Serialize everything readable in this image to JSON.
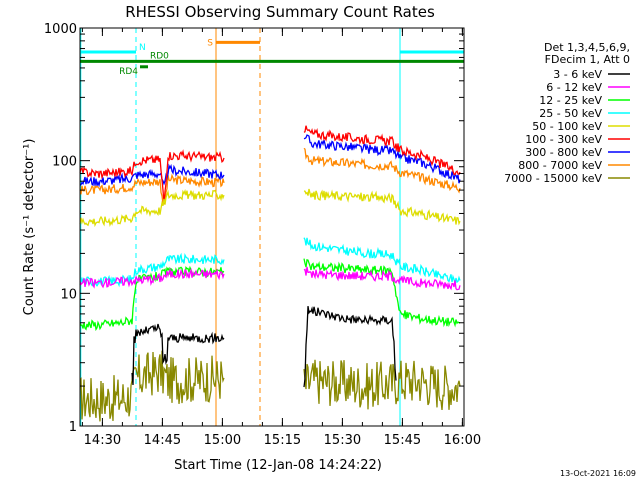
{
  "chart_data": {
    "type": "line",
    "title": "RHESSI Observing Summary Count Rates",
    "xlabel": "Start Time (12-Jan-08 14:24:22)",
    "ylabel": "Count Rate (s⁻¹ detector⁻¹)",
    "yscale": "log",
    "ylim": [
      1,
      1000
    ],
    "xlim_minutes": [
      0,
      96
    ],
    "x_ticks": [
      {
        "label": "14:30",
        "min": 5.6
      },
      {
        "label": "14:45",
        "min": 20.6
      },
      {
        "label": "15:00",
        "min": 35.6
      },
      {
        "label": "15:15",
        "min": 50.6
      },
      {
        "label": "15:30",
        "min": 65.6
      },
      {
        "label": "15:45",
        "min": 80.6
      },
      {
        "label": "16:00",
        "min": 95.6
      }
    ],
    "y_ticks": [
      {
        "label": "1",
        "value": 1
      },
      {
        "label": "10",
        "value": 10
      },
      {
        "label": "100",
        "value": 100
      },
      {
        "label": "1000",
        "value": 1000
      }
    ],
    "legend": {
      "position": "right",
      "header": [
        "Det 1,3,4,5,6,9,",
        "FDecim 1, Att 0"
      ]
    },
    "series": [
      {
        "name": "3 - 6 keV",
        "color": "#000000",
        "segments": [
          [
            [
              13,
              2.1
            ],
            [
              14,
              5
            ],
            [
              20,
              5.5
            ],
            [
              21,
              2.5
            ],
            [
              22,
              4.6
            ],
            [
              36,
              4.6
            ]
          ],
          [
            [
              56,
              2.2
            ],
            [
              57,
              7.5
            ],
            [
              66,
              6.5
            ],
            [
              72,
              6.2
            ],
            [
              78,
              6.3
            ],
            [
              79,
              2.2
            ]
          ]
        ]
      },
      {
        "name": "6 - 12 keV",
        "color": "#ff00ff",
        "segments": [
          [
            [
              0,
              12
            ],
            [
              5,
              12
            ],
            [
              10,
              12.3
            ],
            [
              13,
              12.5
            ],
            [
              20,
              13
            ],
            [
              22,
              14
            ],
            [
              36,
              14
            ]
          ],
          [
            [
              56,
              15
            ],
            [
              58,
              14
            ],
            [
              66,
              13.7
            ],
            [
              72,
              13.5
            ],
            [
              78,
              13.5
            ],
            [
              80,
              12.5
            ],
            [
              85,
              12
            ],
            [
              90,
              11.8
            ],
            [
              95,
              11.5
            ]
          ]
        ]
      },
      {
        "name": "12 - 25 keV",
        "color": "#00ff00",
        "segments": [
          [
            [
              0,
              5.8
            ],
            [
              5,
              5.8
            ],
            [
              10,
              6
            ],
            [
              13,
              6.3
            ],
            [
              14,
              12.5
            ],
            [
              20,
              13.5
            ],
            [
              22,
              14.5
            ],
            [
              36,
              14.5
            ]
          ],
          [
            [
              56,
              17
            ],
            [
              58,
              16
            ],
            [
              66,
              15.5
            ],
            [
              72,
              15
            ],
            [
              78,
              14.8
            ],
            [
              80,
              7
            ],
            [
              85,
              6.5
            ],
            [
              90,
              6.2
            ],
            [
              95,
              6
            ]
          ]
        ]
      },
      {
        "name": "25 - 50 keV",
        "color": "#00ffff",
        "segments": [
          [
            [
              0,
              12.5
            ],
            [
              5,
              12.3
            ],
            [
              10,
              12.5
            ],
            [
              13,
              12.8
            ],
            [
              14,
              15
            ],
            [
              20,
              16
            ],
            [
              22,
              18
            ],
            [
              36,
              18
            ]
          ],
          [
            [
              56,
              25
            ],
            [
              58,
              23
            ],
            [
              66,
              21
            ],
            [
              72,
              20
            ],
            [
              78,
              19.5
            ],
            [
              80,
              16
            ],
            [
              85,
              15
            ],
            [
              90,
              13.5
            ],
            [
              95,
              12.5
            ]
          ]
        ]
      },
      {
        "name": "50 - 100 keV",
        "color": "#dddd00",
        "segments": [
          [
            [
              0,
              35
            ],
            [
              5,
              35
            ],
            [
              10,
              36
            ],
            [
              13,
              37
            ],
            [
              14,
              42
            ],
            [
              20,
              42
            ],
            [
              21,
              48
            ],
            [
              22,
              55
            ],
            [
              36,
              55
            ]
          ],
          [
            [
              56,
              60
            ],
            [
              58,
              55
            ],
            [
              66,
              54
            ],
            [
              72,
              53
            ],
            [
              78,
              52
            ],
            [
              80,
              42
            ],
            [
              85,
              40
            ],
            [
              90,
              37
            ],
            [
              95,
              35
            ]
          ]
        ]
      },
      {
        "name": "100 - 300 keV",
        "color": "#ff0000",
        "segments": [
          [
            [
              0,
              82
            ],
            [
              5,
              80
            ],
            [
              10,
              82
            ],
            [
              13,
              84
            ],
            [
              14,
              100
            ],
            [
              20,
              102
            ],
            [
              21,
              48
            ],
            [
              22,
              110
            ],
            [
              36,
              105
            ]
          ],
          [
            [
              56,
              175
            ],
            [
              58,
              160
            ],
            [
              66,
              150
            ],
            [
              72,
              145
            ],
            [
              78,
              140
            ],
            [
              80,
              120
            ],
            [
              85,
              110
            ],
            [
              90,
              95
            ],
            [
              95,
              82
            ]
          ]
        ]
      },
      {
        "name": "300 - 800 keV",
        "color": "#0000ff",
        "segments": [
          [
            [
              0,
              70
            ],
            [
              5,
              70
            ],
            [
              10,
              72
            ],
            [
              13,
              74
            ],
            [
              14,
              78
            ],
            [
              20,
              80
            ],
            [
              21,
              62
            ],
            [
              22,
              85
            ],
            [
              36,
              78
            ]
          ],
          [
            [
              56,
              155
            ],
            [
              58,
              135
            ],
            [
              66,
              128
            ],
            [
              72,
              122
            ],
            [
              78,
              118
            ],
            [
              80,
              105
            ],
            [
              85,
              98
            ],
            [
              90,
              85
            ],
            [
              95,
              72
            ]
          ]
        ]
      },
      {
        "name": "800 - 7000 keV",
        "color": "#ff8800",
        "segments": [
          [
            [
              0,
              60
            ],
            [
              5,
              60
            ],
            [
              10,
              62
            ],
            [
              13,
              64
            ],
            [
              14,
              68
            ],
            [
              20,
              70
            ],
            [
              21,
              44
            ],
            [
              22,
              72
            ],
            [
              36,
              68
            ]
          ],
          [
            [
              56,
              115
            ],
            [
              58,
              100
            ],
            [
              66,
              96
            ],
            [
              72,
              93
            ],
            [
              78,
              92
            ],
            [
              80,
              82
            ],
            [
              85,
              75
            ],
            [
              90,
              68
            ],
            [
              95,
              62
            ]
          ]
        ]
      },
      {
        "name": "7000 - 15000 keV",
        "color": "#888800",
        "segments": [
          [
            [
              0,
              1.6
            ],
            [
              5,
              1.6
            ],
            [
              10,
              1.6
            ],
            [
              13,
              1.7
            ],
            [
              14,
              2.3
            ],
            [
              20,
              2.6
            ],
            [
              22,
              2.2
            ],
            [
              36,
              2.3
            ]
          ],
          [
            [
              56,
              2
            ],
            [
              58,
              2.2
            ],
            [
              66,
              2.1
            ],
            [
              72,
              2
            ],
            [
              78,
              2.1
            ],
            [
              80,
              2.2
            ],
            [
              85,
              2.2
            ],
            [
              90,
              2
            ],
            [
              95,
              2
            ]
          ]
        ]
      }
    ],
    "flags": [
      {
        "label": "N",
        "color": "#00ffff",
        "value": 660,
        "segments": [
          [
            0,
            14
          ],
          [
            80,
            96
          ]
        ]
      },
      {
        "label": "RD0",
        "color": "#008800",
        "value": 560,
        "segments": [
          [
            0,
            96
          ]
        ]
      },
      {
        "label": "RD4",
        "color": "#008800",
        "value": 510,
        "segments": [
          [
            15,
            17
          ]
        ]
      },
      {
        "label": "S",
        "color": "#ff8800",
        "value": 780,
        "segments": [
          [
            34,
            45
          ]
        ]
      }
    ],
    "vertical_markers": [
      {
        "min": 14,
        "color": "#00ffff",
        "style": "dashed"
      },
      {
        "min": 80,
        "color": "#00ffff",
        "style": "solid"
      },
      {
        "min": 96,
        "color": "#00ffff",
        "style": "dashed"
      },
      {
        "min": 0.2,
        "color": "#00ffff",
        "style": "solid"
      },
      {
        "min": 34,
        "color": "#ff8800",
        "style": "solid"
      },
      {
        "min": 45,
        "color": "#ff8800",
        "style": "dashed"
      }
    ],
    "footer": "13-Oct-2021 16:09"
  }
}
